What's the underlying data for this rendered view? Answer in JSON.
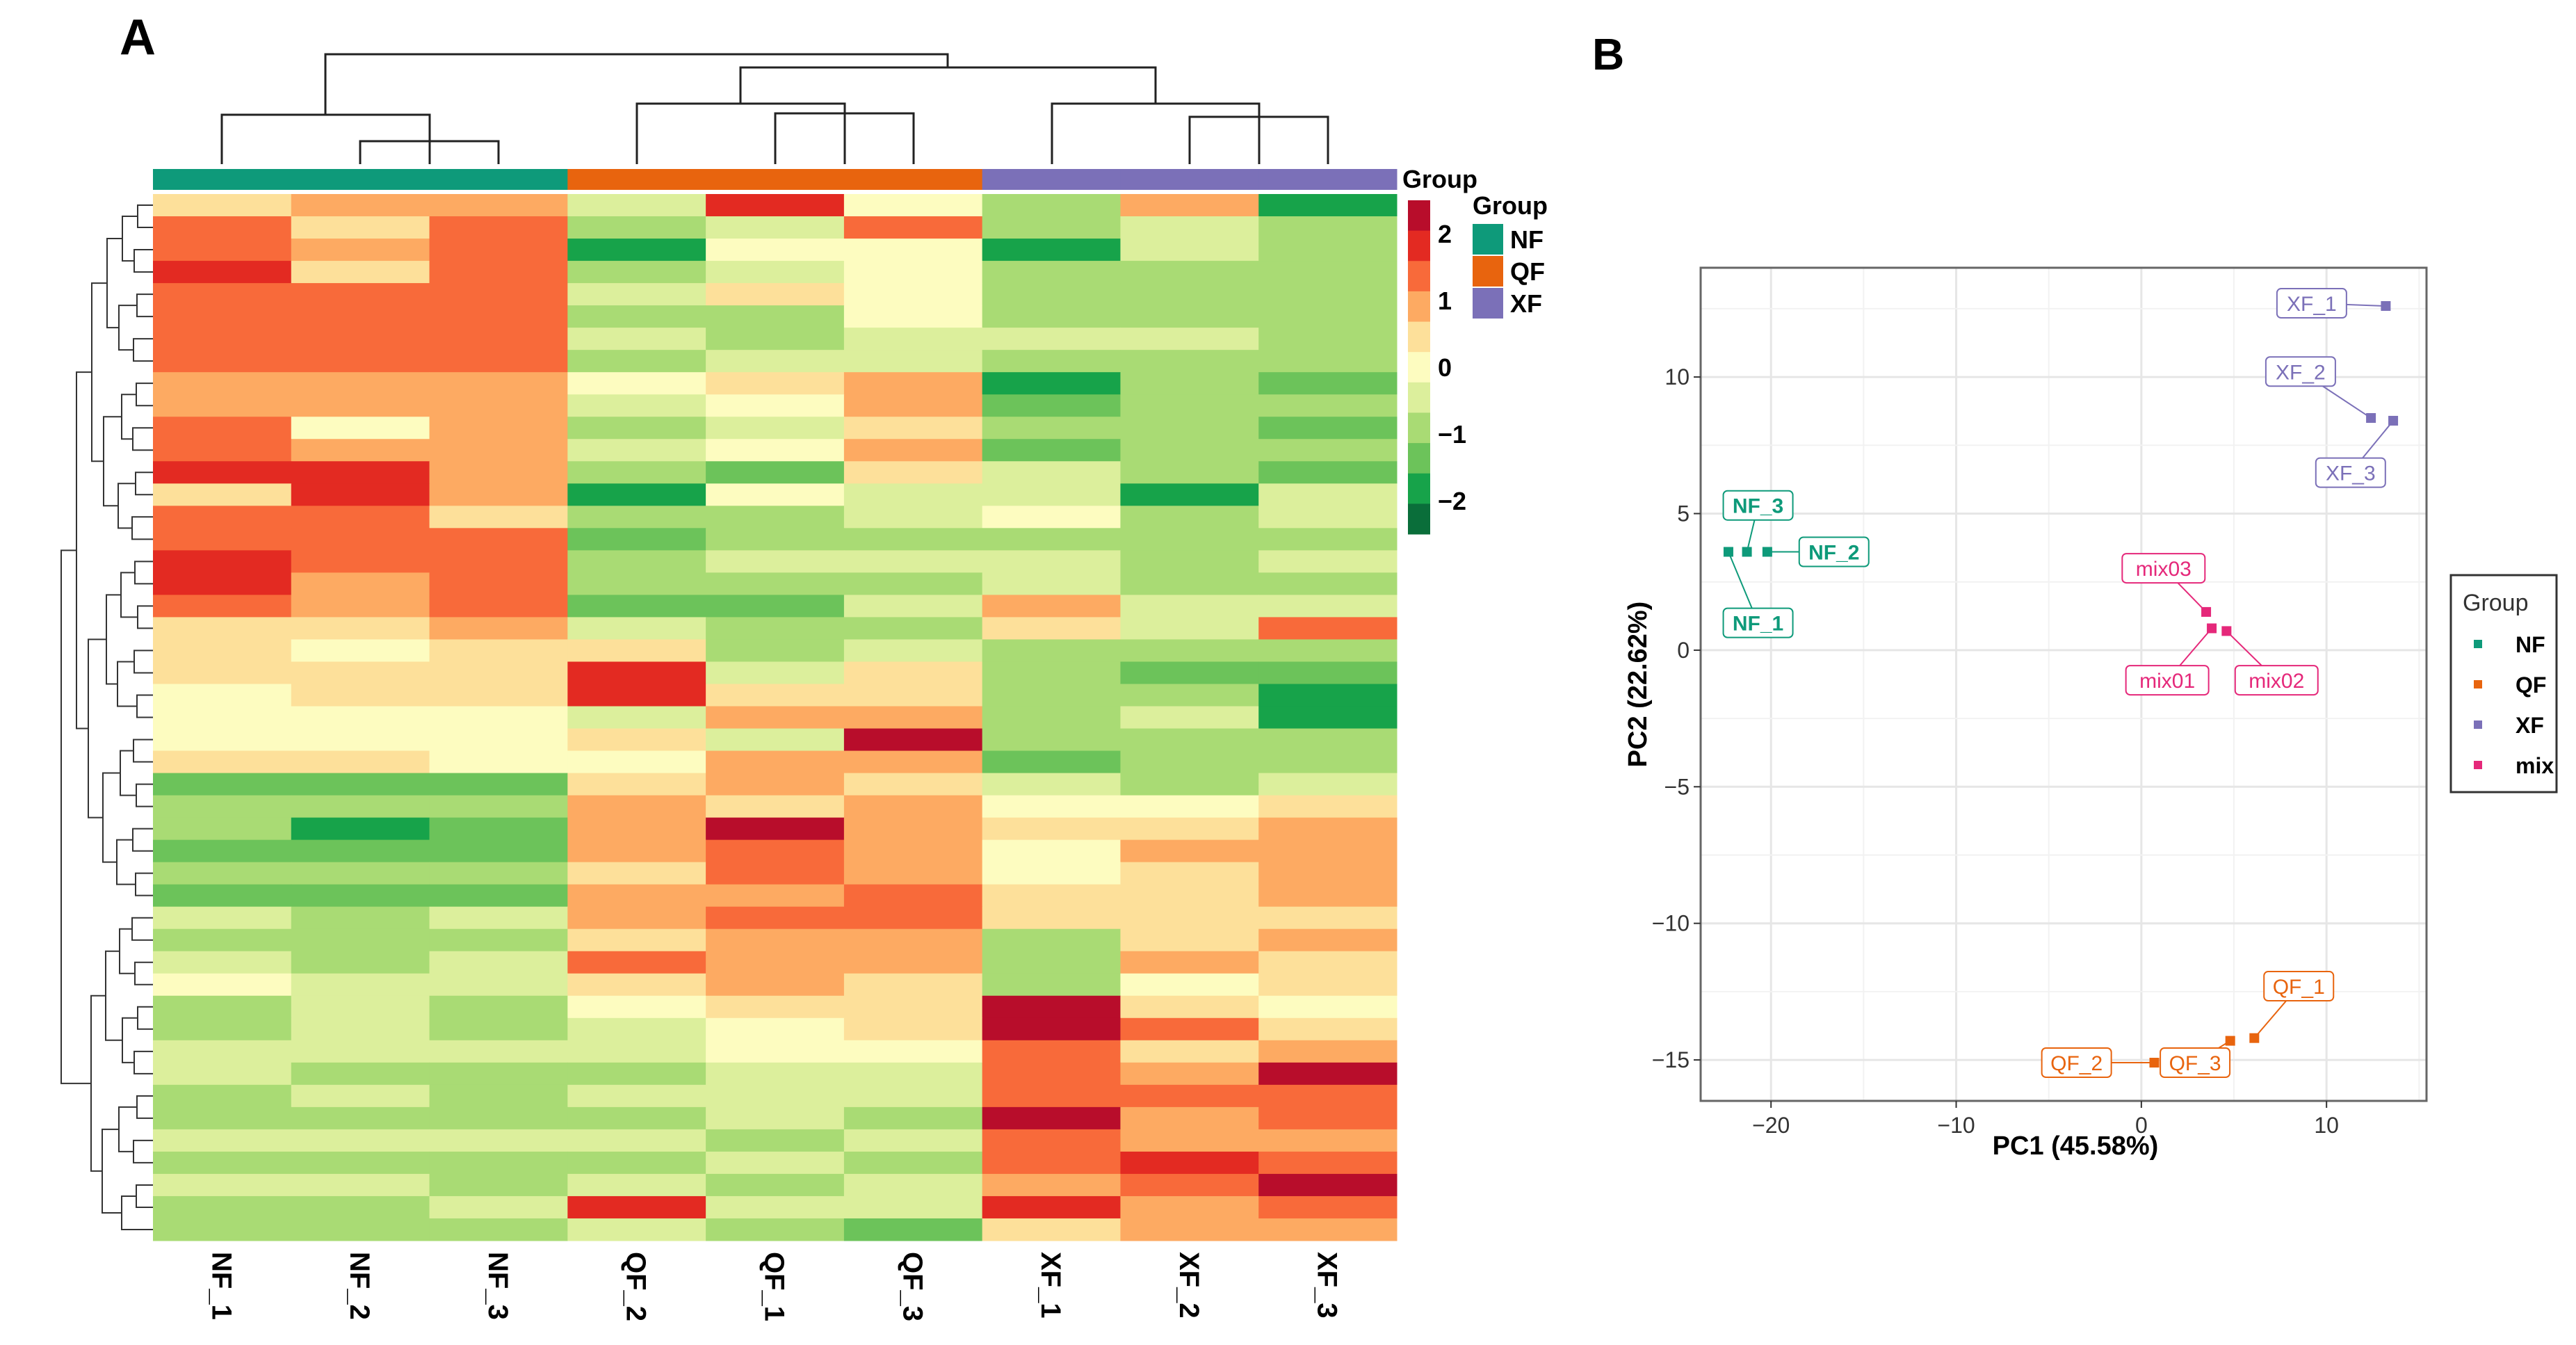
{
  "chart_data": [
    {
      "type": "heatmap",
      "panel_label": "A",
      "columns": [
        "NF_1",
        "NF_2",
        "NF_3",
        "QF_2",
        "QF_1",
        "QF_3",
        "XF_1",
        "XF_2",
        "XF_3"
      ],
      "column_groups": [
        "NF",
        "NF",
        "NF",
        "QF",
        "QF",
        "QF",
        "XF",
        "XF",
        "XF"
      ],
      "annotation_title": "Group",
      "legend_title": "Group",
      "groups": [
        {
          "name": "NF",
          "color": "#0e9a7a"
        },
        {
          "name": "QF",
          "color": "#e8640e"
        },
        {
          "name": "XF",
          "color": "#7b70b8"
        }
      ],
      "color_scale": {
        "ticks": [
          "2",
          "1",
          "0",
          "−1",
          "−2"
        ],
        "tick_values": [
          2,
          1,
          0,
          -1,
          -2
        ],
        "range": [
          -2.5,
          2.5
        ],
        "colors": [
          "#0a6e3a",
          "#17a34a",
          "#6cc35a",
          "#a9db74",
          "#dcef9c",
          "#fdfcc0",
          "#fde09a",
          "#fdaa62",
          "#f86a3a",
          "#e32a22",
          "#b80d2b"
        ]
      },
      "values": [
        [
          0.3,
          0.9,
          0.8,
          -0.6,
          1.6,
          0.2,
          -1.0,
          1.0,
          -1.6
        ],
        [
          1.4,
          0.5,
          1.2,
          -0.8,
          -0.4,
          1.3,
          -0.7,
          -0.5,
          -1.1
        ],
        [
          1.2,
          0.8,
          1.3,
          -1.6,
          0.1,
          -0.2,
          -1.8,
          -0.6,
          -0.8
        ],
        [
          1.8,
          0.6,
          1.4,
          -0.7,
          -0.5,
          0.1,
          -0.9,
          -0.7,
          -1.0
        ],
        [
          1.5,
          1.3,
          1.5,
          -0.3,
          0.3,
          -0.1,
          -0.8,
          -0.8,
          -0.7
        ],
        [
          1.4,
          1.4,
          1.5,
          -0.9,
          -0.8,
          0.0,
          -0.8,
          -0.9,
          -0.9
        ],
        [
          1.3,
          1.4,
          1.5,
          -0.6,
          -1.0,
          -0.4,
          -0.6,
          -0.6,
          -0.8
        ],
        [
          1.5,
          1.2,
          1.5,
          -0.7,
          -0.6,
          -0.5,
          -0.7,
          -0.8,
          -0.9
        ],
        [
          1.0,
          1.0,
          1.1,
          -0.2,
          0.3,
          1.0,
          -1.8,
          -0.9,
          -1.3
        ],
        [
          0.9,
          0.8,
          1.1,
          -0.4,
          0.1,
          1.0,
          -1.4,
          -0.8,
          -0.9
        ],
        [
          1.4,
          0.2,
          1.0,
          -0.8,
          -0.5,
          0.4,
          -1.0,
          -1.0,
          -1.4
        ],
        [
          1.2,
          0.9,
          1.0,
          -0.3,
          0.2,
          0.8,
          -1.3,
          -0.9,
          -0.8
        ],
        [
          1.8,
          1.9,
          1.0,
          -0.7,
          -1.5,
          0.3,
          -0.6,
          -1.0,
          -1.2
        ],
        [
          0.5,
          1.9,
          1.0,
          -1.6,
          -0.2,
          -0.4,
          -0.3,
          -1.9,
          -0.5
        ],
        [
          1.3,
          1.4,
          0.6,
          -1.0,
          -0.7,
          -0.6,
          0.0,
          -0.8,
          -0.3
        ],
        [
          1.5,
          1.5,
          1.5,
          -1.3,
          -1.0,
          -0.7,
          -0.7,
          -0.8,
          -0.9
        ],
        [
          1.6,
          1.4,
          1.5,
          -0.9,
          -0.6,
          -0.3,
          -0.5,
          -0.7,
          -0.6
        ],
        [
          1.7,
          1.1,
          1.5,
          -1.1,
          -0.9,
          -0.8,
          -0.6,
          -0.8,
          -0.8
        ],
        [
          1.2,
          0.8,
          1.2,
          -1.2,
          -1.3,
          -0.6,
          0.9,
          -0.5,
          -0.4
        ],
        [
          0.6,
          0.5,
          0.9,
          -0.5,
          -1.0,
          -0.9,
          0.4,
          -0.3,
          1.4
        ],
        [
          0.3,
          0.2,
          0.4,
          0.5,
          -0.7,
          -0.4,
          -0.9,
          -0.8,
          -1.1
        ],
        [
          0.4,
          0.4,
          0.3,
          1.9,
          -0.3,
          0.3,
          -1.0,
          -1.2,
          -1.5
        ],
        [
          0.2,
          0.3,
          0.5,
          1.6,
          0.5,
          0.6,
          -0.8,
          -0.9,
          -1.9
        ],
        [
          0.1,
          0.0,
          0.2,
          -0.4,
          0.7,
          0.9,
          -1.0,
          -0.6,
          -2.0
        ],
        [
          -0.1,
          0.2,
          -0.1,
          0.5,
          -0.6,
          2.1,
          -0.7,
          -0.8,
          -0.8
        ],
        [
          0.3,
          0.5,
          0.2,
          0.2,
          0.8,
          0.7,
          -1.2,
          -0.9,
          -1.0
        ],
        [
          -1.4,
          -1.2,
          -1.4,
          0.4,
          0.8,
          0.3,
          -0.5,
          -0.7,
          -0.4
        ],
        [
          -1.0,
          -1.0,
          -1.1,
          0.8,
          0.4,
          1.0,
          0.2,
          0.0,
          0.5
        ],
        [
          -0.8,
          -1.8,
          -1.3,
          1.1,
          2.2,
          0.8,
          0.5,
          0.3,
          0.8
        ],
        [
          -1.2,
          -1.4,
          -1.5,
          0.9,
          1.2,
          0.7,
          0.2,
          0.8,
          1.0
        ],
        [
          -0.7,
          -1.0,
          -0.9,
          0.6,
          1.5,
          0.9,
          -0.1,
          0.4,
          0.7
        ],
        [
          -1.3,
          -1.2,
          -1.4,
          0.8,
          0.7,
          1.2,
          0.3,
          0.6,
          1.1
        ],
        [
          -0.5,
          -0.8,
          -0.6,
          1.0,
          1.3,
          1.4,
          0.6,
          0.4,
          0.3
        ],
        [
          -0.9,
          -1.0,
          -1.1,
          0.5,
          1.0,
          0.8,
          -1.1,
          0.5,
          0.9
        ],
        [
          -0.6,
          -0.7,
          -0.6,
          1.2,
          0.9,
          1.0,
          -1.0,
          0.9,
          0.5
        ],
        [
          -0.2,
          -0.4,
          -0.5,
          0.4,
          0.8,
          0.6,
          -0.8,
          0.2,
          0.4
        ],
        [
          -1.0,
          -0.6,
          -0.9,
          0.2,
          0.3,
          0.5,
          2.4,
          0.4,
          0.2
        ],
        [
          -0.8,
          -0.6,
          -0.7,
          -0.3,
          0.2,
          0.3,
          2.2,
          1.2,
          0.6
        ],
        [
          -0.5,
          -0.4,
          -0.6,
          -0.5,
          -0.2,
          0.1,
          1.4,
          0.5,
          0.7
        ],
        [
          -0.6,
          -0.8,
          -0.7,
          -0.8,
          -0.3,
          -0.5,
          1.3,
          0.8,
          2.4
        ],
        [
          -0.7,
          -0.6,
          -0.9,
          -0.6,
          -0.5,
          -0.4,
          1.4,
          1.5,
          1.2
        ],
        [
          -0.9,
          -0.8,
          -0.8,
          -0.7,
          -0.6,
          -0.9,
          2.2,
          1.0,
          1.5
        ],
        [
          -0.4,
          -0.6,
          -0.5,
          -0.5,
          -0.7,
          -0.6,
          1.2,
          0.9,
          1.0
        ],
        [
          -0.8,
          -0.7,
          -0.8,
          -0.9,
          -0.5,
          -0.7,
          1.5,
          1.9,
          1.4
        ],
        [
          -0.6,
          -0.5,
          -0.7,
          -0.4,
          -0.8,
          -0.5,
          1.0,
          1.2,
          2.2
        ],
        [
          -0.7,
          -0.8,
          -0.6,
          1.8,
          -0.5,
          -0.6,
          1.6,
          1.0,
          1.3
        ],
        [
          -0.9,
          -0.7,
          -0.8,
          -0.6,
          -0.9,
          -1.3,
          0.6,
          0.9,
          1.1
        ]
      ]
    },
    {
      "type": "scatter",
      "panel_label": "B",
      "xlabel": "PC1 (45.58%)",
      "ylabel": "PC2 (22.62%)",
      "xlim": [
        -23.8,
        15.4
      ],
      "ylim": [
        -16.5,
        14.0
      ],
      "xticks": [
        -20,
        -10,
        0,
        10
      ],
      "xtick_labels": [
        "−20",
        "−10",
        "0",
        "10"
      ],
      "yticks": [
        10,
        5,
        0,
        -5,
        -10,
        -15
      ],
      "ytick_labels": [
        "10",
        "5",
        "0",
        "−5",
        "−10",
        "−15"
      ],
      "grid": true,
      "legend": {
        "title": "Group",
        "placement": "right",
        "entries": [
          {
            "name": "NF",
            "color": "#0e9a7a"
          },
          {
            "name": "QF",
            "color": "#e8640e"
          },
          {
            "name": "XF",
            "color": "#7b70b8"
          },
          {
            "name": "mix",
            "color": "#e5287a"
          }
        ]
      },
      "points": [
        {
          "label": "NF_1",
          "group": "NF",
          "x": -22.3,
          "y": 3.6,
          "label_x": -20.7,
          "label_y": 1.0
        },
        {
          "label": "NF_3",
          "group": "NF",
          "x": -21.3,
          "y": 3.6,
          "label_x": -20.7,
          "label_y": 5.3
        },
        {
          "label": "NF_2",
          "group": "NF",
          "x": -20.2,
          "y": 3.6,
          "label_x": -16.6,
          "label_y": 3.6
        },
        {
          "label": "QF_1",
          "group": "QF",
          "x": 6.1,
          "y": -14.2,
          "label_x": 8.5,
          "label_y": -12.3
        },
        {
          "label": "QF_3",
          "group": "QF",
          "x": 4.8,
          "y": -14.3,
          "label_x": 2.9,
          "label_y": -15.1
        },
        {
          "label": "QF_2",
          "group": "QF",
          "x": 0.7,
          "y": -15.1,
          "label_x": -3.5,
          "label_y": -15.1
        },
        {
          "label": "XF_1",
          "group": "XF",
          "x": 13.2,
          "y": 12.6,
          "label_x": 9.2,
          "label_y": 12.7
        },
        {
          "label": "XF_2",
          "group": "XF",
          "x": 12.4,
          "y": 8.5,
          "label_x": 8.6,
          "label_y": 10.2
        },
        {
          "label": "XF_3",
          "group": "XF",
          "x": 13.6,
          "y": 8.4,
          "label_x": 11.3,
          "label_y": 6.5
        },
        {
          "label": "mix03",
          "group": "mix",
          "x": 3.5,
          "y": 1.4,
          "label_x": 1.2,
          "label_y": 3.0
        },
        {
          "label": "mix01",
          "group": "mix",
          "x": 3.8,
          "y": 0.8,
          "label_x": 1.4,
          "label_y": -1.1
        },
        {
          "label": "mix02",
          "group": "mix",
          "x": 4.6,
          "y": 0.7,
          "label_x": 7.3,
          "label_y": -1.1
        }
      ]
    }
  ]
}
